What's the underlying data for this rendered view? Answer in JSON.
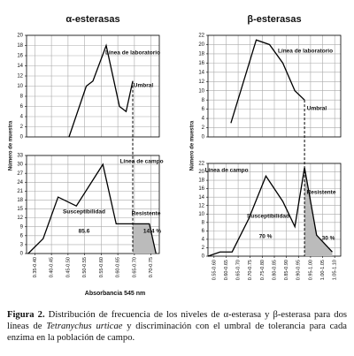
{
  "chart_data": [
    {
      "type": "line",
      "title": "α-esterasas",
      "ylabel": "Número de muestra",
      "color": "#000000",
      "x": [
        0.478,
        0.53,
        0.55,
        0.59,
        0.63,
        0.65,
        0.67
      ],
      "values": [
        0,
        10,
        11,
        18,
        6,
        5,
        11
      ],
      "xlim": [
        0.35,
        0.75
      ],
      "ylim": [
        0,
        20
      ],
      "yticks": [
        0,
        2,
        4,
        6,
        8,
        10,
        12,
        14,
        16,
        18,
        20
      ],
      "grid": true,
      "annotations": [
        "Línea de laboratorio",
        "Umbral"
      ]
    },
    {
      "type": "line",
      "xlabel": "Absorbancia 545 nm",
      "color": "#000000",
      "shade_color": "#bbbbbb",
      "threshold": 0.67,
      "x": [
        0.355,
        0.4,
        0.445,
        0.5,
        0.58,
        0.62,
        0.67,
        0.72,
        0.74
      ],
      "values": [
        0,
        5,
        19,
        16,
        30,
        10,
        10,
        10,
        0
      ],
      "xlim": [
        0.35,
        0.75
      ],
      "xticks": [
        {
          "value": 0.375,
          "label": "0.35-0.40"
        },
        {
          "value": 0.425,
          "label": "0.40-0.45"
        },
        {
          "value": 0.475,
          "label": "0.45-0.50"
        },
        {
          "value": 0.525,
          "label": "0.50-0.55"
        },
        {
          "value": 0.575,
          "label": "0.55-0.60"
        },
        {
          "value": 0.625,
          "label": "0.60-0.65"
        },
        {
          "value": 0.675,
          "label": "0.65-0.70"
        },
        {
          "value": 0.725,
          "label": "0.70-0.75"
        }
      ],
      "ylim": [
        0,
        33
      ],
      "yticks": [
        0,
        3,
        6,
        9,
        12,
        15,
        18,
        21,
        24,
        27,
        30,
        33
      ],
      "grid": true,
      "annotations": [
        "Línea de campo",
        "Susceptibilidad",
        "85.6",
        "Resistente",
        "14.4 %"
      ]
    },
    {
      "type": "line",
      "title": "β-esterasas",
      "ylabel": "Número de muestra",
      "color": "#000000",
      "x": [
        0.645,
        0.75,
        0.805,
        0.86,
        0.91,
        0.95
      ],
      "values": [
        3,
        21,
        20,
        16,
        10,
        8
      ],
      "xlim": [
        0.55,
        1.1
      ],
      "ylim": [
        0,
        22
      ],
      "yticks": [
        0,
        2,
        4,
        6,
        8,
        10,
        12,
        14,
        16,
        18,
        20,
        22
      ],
      "grid": true,
      "annotations": [
        "Línea de laboratorio",
        "Umbral"
      ]
    },
    {
      "type": "line",
      "color": "#000000",
      "shade_color": "#bbbbbb",
      "threshold": 0.95,
      "x": [
        0.55,
        0.6,
        0.65,
        0.72,
        0.79,
        0.86,
        0.91,
        0.95,
        1.0,
        1.065
      ],
      "values": [
        0,
        1,
        1,
        9,
        19,
        13,
        7,
        21,
        5,
        1
      ],
      "xlim": [
        0.55,
        1.1
      ],
      "xticks": [
        {
          "value": 0.575,
          "label": "0.55-0.60"
        },
        {
          "value": 0.625,
          "label": "0.60-0.65"
        },
        {
          "value": 0.675,
          "label": "0.65-0.70"
        },
        {
          "value": 0.725,
          "label": "0.70-0.75"
        },
        {
          "value": 0.775,
          "label": "0.75-0.80"
        },
        {
          "value": 0.825,
          "label": "0.80-0.85"
        },
        {
          "value": 0.875,
          "label": "0.85-0.90"
        },
        {
          "value": 0.925,
          "label": "0.90-0.95"
        },
        {
          "value": 0.975,
          "label": "0.95-1.00"
        },
        {
          "value": 1.025,
          "label": "1.00-1.05"
        },
        {
          "value": 1.075,
          "label": "1.05-1.10"
        }
      ],
      "ylim": [
        0,
        22
      ],
      "yticks": [
        0,
        2,
        4,
        6,
        8,
        10,
        12,
        14,
        16,
        18,
        20,
        22
      ],
      "grid": true,
      "annotations": [
        "Línea de campo",
        "Susceptibilidad",
        "70 %",
        "Resistente",
        "30 %"
      ]
    }
  ],
  "caption": {
    "label": "Figura 2.",
    "text_before": "Distribución de frecuencia de los niveles de α-esterasa y β-esterasa para dos líneas de",
    "species": "Tetranychus urticae",
    "text_after": "y discriminación con el umbral de tolerancia para cada enzima en la población de campo."
  }
}
